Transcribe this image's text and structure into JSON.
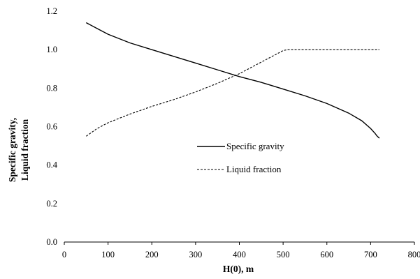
{
  "chart_data": {
    "type": "line",
    "xlabel": "H(0), m",
    "ylabel_lines": [
      "Specific gravity,",
      "Liquid fraction"
    ],
    "xlim": [
      0,
      800
    ],
    "ylim": [
      0,
      1.2
    ],
    "x_ticks": [
      0,
      100,
      200,
      300,
      400,
      500,
      600,
      700,
      800
    ],
    "x_tick_labels": [
      "0",
      "100",
      "200",
      "300",
      "400",
      "500",
      "600",
      "700",
      "800"
    ],
    "y_ticks": [
      0,
      0.2,
      0.4,
      0.6,
      0.8,
      1.0,
      1.2
    ],
    "y_tick_labels": [
      "0.0",
      "0.2",
      "0.4",
      "0.6",
      "0.8",
      "1.0",
      "1.2"
    ],
    "grid": false,
    "legend_position": "center",
    "series": [
      {
        "name": "Specific gravity",
        "style": "solid",
        "color": "#000000",
        "x": [
          50,
          75,
          100,
          150,
          200,
          250,
          300,
          350,
          400,
          450,
          500,
          550,
          600,
          650,
          680,
          700,
          710,
          715,
          720
        ],
        "y": [
          1.14,
          1.11,
          1.08,
          1.035,
          1.0,
          0.965,
          0.93,
          0.895,
          0.86,
          0.83,
          0.795,
          0.76,
          0.72,
          0.67,
          0.63,
          0.59,
          0.565,
          0.55,
          0.54
        ]
      },
      {
        "name": "Liquid fraction",
        "style": "dashed",
        "color": "#000000",
        "x": [
          50,
          75,
          100,
          150,
          200,
          250,
          300,
          350,
          400,
          450,
          500,
          510,
          550,
          600,
          650,
          700,
          720
        ],
        "y": [
          0.55,
          0.59,
          0.62,
          0.665,
          0.705,
          0.74,
          0.78,
          0.825,
          0.875,
          0.935,
          0.995,
          1.0,
          1.0,
          1.0,
          1.0,
          1.0,
          1.0
        ]
      }
    ]
  }
}
